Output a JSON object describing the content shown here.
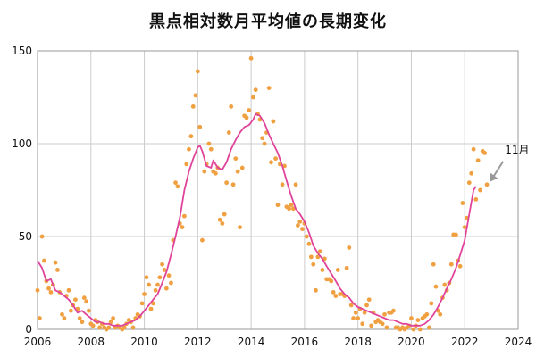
{
  "chart_data": {
    "type": "scatter",
    "title": "黒点相対数月平均値の長期変化",
    "xlim": [
      2006,
      2024
    ],
    "ylim": [
      0,
      150
    ],
    "xticks": [
      "2006",
      "2008",
      "2010",
      "2012",
      "2014",
      "2016",
      "2018",
      "2020",
      "2022",
      "2024"
    ],
    "yticks": [
      "0",
      "50",
      "100",
      "150"
    ],
    "grid": true,
    "colors": {
      "monthly": "#f0a040",
      "smoothed": "#e0449a",
      "grid": "#cccccc",
      "arrow": "#999999"
    },
    "annotation": {
      "text": "11月",
      "points_to": [
        2022.87,
        78
      ]
    },
    "series": [
      {
        "type": "scatter",
        "points": [
          [
            2006.0,
            21
          ],
          [
            2006.08,
            6
          ],
          [
            2006.17,
            50
          ],
          [
            2006.25,
            37
          ],
          [
            2006.33,
            26
          ],
          [
            2006.42,
            22
          ],
          [
            2006.5,
            20
          ],
          [
            2006.58,
            24
          ],
          [
            2006.67,
            36
          ],
          [
            2006.75,
            32
          ],
          [
            2006.83,
            20
          ],
          [
            2006.92,
            8
          ],
          [
            2007.0,
            6
          ],
          [
            2007.08,
            18
          ],
          [
            2007.17,
            21
          ],
          [
            2007.25,
            10
          ],
          [
            2007.33,
            13
          ],
          [
            2007.42,
            16
          ],
          [
            2007.5,
            11
          ],
          [
            2007.58,
            6
          ],
          [
            2007.67,
            4
          ],
          [
            2007.75,
            17
          ],
          [
            2007.83,
            15
          ],
          [
            2007.92,
            10
          ],
          [
            2008.0,
            3
          ],
          [
            2008.08,
            2
          ],
          [
            2008.17,
            5
          ],
          [
            2008.25,
            4
          ],
          [
            2008.33,
            1
          ],
          [
            2008.42,
            3
          ],
          [
            2008.5,
            1
          ],
          [
            2008.58,
            0
          ],
          [
            2008.67,
            1
          ],
          [
            2008.75,
            4
          ],
          [
            2008.83,
            6
          ],
          [
            2008.92,
            1
          ],
          [
            2009.0,
            2
          ],
          [
            2009.08,
            1
          ],
          [
            2009.17,
            0
          ],
          [
            2009.25,
            1
          ],
          [
            2009.33,
            3
          ],
          [
            2009.42,
            5
          ],
          [
            2009.5,
            4
          ],
          [
            2009.58,
            1
          ],
          [
            2009.67,
            6
          ],
          [
            2009.75,
            8
          ],
          [
            2009.83,
            7
          ],
          [
            2009.92,
            14
          ],
          [
            2010.0,
            19
          ],
          [
            2010.08,
            28
          ],
          [
            2010.17,
            24
          ],
          [
            2010.25,
            11
          ],
          [
            2010.33,
            14
          ],
          [
            2010.42,
            21
          ],
          [
            2010.5,
            24
          ],
          [
            2010.58,
            28
          ],
          [
            2010.67,
            35
          ],
          [
            2010.75,
            32
          ],
          [
            2010.83,
            22
          ],
          [
            2010.92,
            29
          ],
          [
            2011.0,
            25
          ],
          [
            2011.08,
            48
          ],
          [
            2011.17,
            79
          ],
          [
            2011.25,
            77
          ],
          [
            2011.33,
            57
          ],
          [
            2011.42,
            55
          ],
          [
            2011.5,
            61
          ],
          [
            2011.58,
            89
          ],
          [
            2011.67,
            97
          ],
          [
            2011.75,
            104
          ],
          [
            2011.83,
            120
          ],
          [
            2011.92,
            126
          ],
          [
            2012.0,
            139
          ],
          [
            2012.08,
            109
          ],
          [
            2012.17,
            48
          ],
          [
            2012.25,
            85
          ],
          [
            2012.33,
            89
          ],
          [
            2012.42,
            100
          ],
          [
            2012.5,
            97
          ],
          [
            2012.58,
            85
          ],
          [
            2012.67,
            84
          ],
          [
            2012.75,
            87
          ],
          [
            2012.83,
            59
          ],
          [
            2012.92,
            57
          ],
          [
            2013.0,
            62
          ],
          [
            2013.08,
            79
          ],
          [
            2013.17,
            106
          ],
          [
            2013.25,
            120
          ],
          [
            2013.33,
            78
          ],
          [
            2013.42,
            92
          ],
          [
            2013.5,
            85
          ],
          [
            2013.58,
            55
          ],
          [
            2013.67,
            87
          ],
          [
            2013.75,
            115
          ],
          [
            2013.83,
            114
          ],
          [
            2013.92,
            118
          ],
          [
            2014.0,
            146
          ],
          [
            2014.08,
            125
          ],
          [
            2014.17,
            129
          ],
          [
            2014.25,
            116
          ],
          [
            2014.33,
            113
          ],
          [
            2014.42,
            103
          ],
          [
            2014.5,
            100
          ],
          [
            2014.58,
            106
          ],
          [
            2014.67,
            130
          ],
          [
            2014.75,
            90
          ],
          [
            2014.83,
            112
          ],
          [
            2014.92,
            92
          ],
          [
            2015.0,
            67
          ],
          [
            2015.08,
            89
          ],
          [
            2015.17,
            78
          ],
          [
            2015.25,
            88
          ],
          [
            2015.33,
            66
          ],
          [
            2015.42,
            65
          ],
          [
            2015.5,
            67
          ],
          [
            2015.58,
            65
          ],
          [
            2015.67,
            78
          ],
          [
            2015.75,
            56
          ],
          [
            2015.83,
            58
          ],
          [
            2015.92,
            54
          ],
          [
            2016.0,
            57
          ],
          [
            2016.08,
            50
          ],
          [
            2016.17,
            46
          ],
          [
            2016.25,
            39
          ],
          [
            2016.33,
            35
          ],
          [
            2016.42,
            21
          ],
          [
            2016.5,
            39
          ],
          [
            2016.58,
            42
          ],
          [
            2016.67,
            32
          ],
          [
            2016.75,
            38
          ],
          [
            2016.83,
            27
          ],
          [
            2016.92,
            27
          ],
          [
            2017.0,
            26
          ],
          [
            2017.08,
            20
          ],
          [
            2017.17,
            18
          ],
          [
            2017.25,
            32
          ],
          [
            2017.33,
            19
          ],
          [
            2017.42,
            19
          ],
          [
            2017.5,
            18
          ],
          [
            2017.58,
            33
          ],
          [
            2017.67,
            44
          ],
          [
            2017.75,
            13
          ],
          [
            2017.83,
            6
          ],
          [
            2017.92,
            9
          ],
          [
            2018.0,
            6
          ],
          [
            2018.08,
            11
          ],
          [
            2018.17,
            3
          ],
          [
            2018.25,
            9
          ],
          [
            2018.33,
            13
          ],
          [
            2018.42,
            16
          ],
          [
            2018.5,
            2
          ],
          [
            2018.58,
            9
          ],
          [
            2018.67,
            4
          ],
          [
            2018.75,
            5
          ],
          [
            2018.83,
            4
          ],
          [
            2018.92,
            3
          ],
          [
            2019.0,
            8
          ],
          [
            2019.08,
            1
          ],
          [
            2019.17,
            9
          ],
          [
            2019.25,
            9
          ],
          [
            2019.33,
            10
          ],
          [
            2019.42,
            1
          ],
          [
            2019.5,
            1
          ],
          [
            2019.58,
            0
          ],
          [
            2019.67,
            1
          ],
          [
            2019.75,
            0
          ],
          [
            2019.83,
            1
          ],
          [
            2019.92,
            2
          ],
          [
            2020.0,
            6
          ],
          [
            2020.08,
            0
          ],
          [
            2020.17,
            2
          ],
          [
            2020.25,
            5
          ],
          [
            2020.33,
            0
          ],
          [
            2020.42,
            6
          ],
          [
            2020.5,
            7
          ],
          [
            2020.58,
            8
          ],
          [
            2020.67,
            1
          ],
          [
            2020.75,
            14
          ],
          [
            2020.83,
            35
          ],
          [
            2020.92,
            23
          ],
          [
            2021.0,
            10
          ],
          [
            2021.08,
            8
          ],
          [
            2021.17,
            17
          ],
          [
            2021.25,
            24
          ],
          [
            2021.33,
            21
          ],
          [
            2021.42,
            25
          ],
          [
            2021.5,
            35
          ],
          [
            2021.58,
            51
          ],
          [
            2021.67,
            51
          ],
          [
            2021.75,
            37
          ],
          [
            2021.83,
            34
          ],
          [
            2021.92,
            68
          ],
          [
            2022.0,
            55
          ],
          [
            2022.08,
            60
          ],
          [
            2022.17,
            79
          ],
          [
            2022.25,
            84
          ],
          [
            2022.33,
            97
          ],
          [
            2022.42,
            70
          ],
          [
            2022.5,
            91
          ],
          [
            2022.58,
            75
          ],
          [
            2022.67,
            96
          ],
          [
            2022.75,
            95
          ],
          [
            2022.83,
            78
          ]
        ]
      },
      {
        "type": "line",
        "points": [
          [
            2006.0,
            37
          ],
          [
            2006.17,
            33
          ],
          [
            2006.33,
            26
          ],
          [
            2006.5,
            27
          ],
          [
            2006.67,
            21
          ],
          [
            2006.83,
            20
          ],
          [
            2007.0,
            18
          ],
          [
            2007.17,
            16
          ],
          [
            2007.33,
            13
          ],
          [
            2007.5,
            9
          ],
          [
            2007.67,
            10
          ],
          [
            2007.83,
            8
          ],
          [
            2008.0,
            6
          ],
          [
            2008.17,
            4
          ],
          [
            2008.33,
            4
          ],
          [
            2008.5,
            3
          ],
          [
            2008.67,
            3
          ],
          [
            2008.83,
            2
          ],
          [
            2009.0,
            2
          ],
          [
            2009.17,
            2
          ],
          [
            2009.33,
            3
          ],
          [
            2009.5,
            4
          ],
          [
            2009.67,
            5
          ],
          [
            2009.83,
            7
          ],
          [
            2010.0,
            10
          ],
          [
            2010.17,
            13
          ],
          [
            2010.33,
            16
          ],
          [
            2010.5,
            19
          ],
          [
            2010.67,
            25
          ],
          [
            2010.83,
            31
          ],
          [
            2011.0,
            40
          ],
          [
            2011.17,
            50
          ],
          [
            2011.33,
            60
          ],
          [
            2011.5,
            75
          ],
          [
            2011.67,
            85
          ],
          [
            2011.83,
            92
          ],
          [
            2012.0,
            98
          ],
          [
            2012.08,
            99
          ],
          [
            2012.17,
            96
          ],
          [
            2012.33,
            88
          ],
          [
            2012.5,
            87
          ],
          [
            2012.58,
            91
          ],
          [
            2012.75,
            87
          ],
          [
            2012.92,
            86
          ],
          [
            2013.08,
            90
          ],
          [
            2013.25,
            97
          ],
          [
            2013.42,
            102
          ],
          [
            2013.58,
            106
          ],
          [
            2013.75,
            109
          ],
          [
            2013.92,
            110
          ],
          [
            2014.08,
            113
          ],
          [
            2014.17,
            116
          ],
          [
            2014.33,
            115
          ],
          [
            2014.5,
            111
          ],
          [
            2014.67,
            105
          ],
          [
            2014.83,
            100
          ],
          [
            2015.0,
            95
          ],
          [
            2015.17,
            88
          ],
          [
            2015.33,
            80
          ],
          [
            2015.5,
            72
          ],
          [
            2015.67,
            65
          ],
          [
            2015.83,
            62
          ],
          [
            2016.0,
            58
          ],
          [
            2016.17,
            52
          ],
          [
            2016.33,
            45
          ],
          [
            2016.5,
            41
          ],
          [
            2016.67,
            38
          ],
          [
            2016.83,
            34
          ],
          [
            2017.0,
            30
          ],
          [
            2017.17,
            26
          ],
          [
            2017.33,
            22
          ],
          [
            2017.5,
            19
          ],
          [
            2017.67,
            17
          ],
          [
            2017.83,
            14
          ],
          [
            2018.0,
            12
          ],
          [
            2018.17,
            11
          ],
          [
            2018.33,
            10
          ],
          [
            2018.5,
            9
          ],
          [
            2018.67,
            8
          ],
          [
            2018.83,
            7
          ],
          [
            2019.0,
            6
          ],
          [
            2019.17,
            5
          ],
          [
            2019.33,
            5
          ],
          [
            2019.5,
            4
          ],
          [
            2019.67,
            3
          ],
          [
            2019.83,
            3
          ],
          [
            2020.0,
            2
          ],
          [
            2020.17,
            2
          ],
          [
            2020.33,
            2
          ],
          [
            2020.5,
            3
          ],
          [
            2020.67,
            5
          ],
          [
            2020.83,
            8
          ],
          [
            2021.0,
            12
          ],
          [
            2021.17,
            17
          ],
          [
            2021.33,
            22
          ],
          [
            2021.5,
            27
          ],
          [
            2021.67,
            33
          ],
          [
            2021.83,
            40
          ],
          [
            2022.0,
            48
          ],
          [
            2022.17,
            62
          ],
          [
            2022.33,
            75
          ],
          [
            2022.42,
            77
          ]
        ]
      }
    ]
  }
}
